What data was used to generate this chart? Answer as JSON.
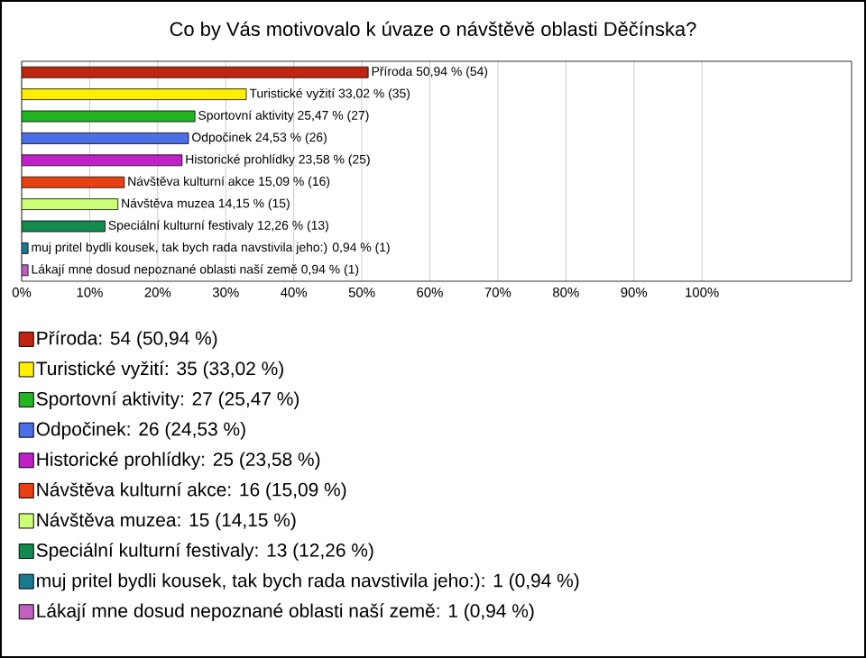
{
  "chart_data": {
    "type": "bar",
    "orientation": "horizontal",
    "title": "Co by Vás motivovalo k úvaze o návštěvě oblasti Děčínska?",
    "categories": [
      null,
      null,
      null,
      null,
      null,
      null,
      null,
      null,
      null,
      null
    ],
    "series": [
      {
        "name": "Příroda: 54 (50,94 %)",
        "color": "#c0260f",
        "values": [
          50.94,
          null,
          null,
          null,
          null,
          null,
          null,
          null,
          null,
          null
        ],
        "value_labels": [
          "Příroda 50,94 % (54)",
          null,
          null,
          null,
          null,
          null,
          null,
          null,
          null,
          null
        ]
      },
      {
        "name": "Turistické vyžití: 35 (33,02 %)",
        "color": "#ffee00",
        "values": [
          null,
          33.02,
          null,
          null,
          null,
          null,
          null,
          null,
          null,
          null
        ],
        "value_labels": [
          null,
          "Turistické vyžití 33,02 % (35)",
          null,
          null,
          null,
          null,
          null,
          null,
          null,
          null
        ]
      },
      {
        "name": "Sportovní aktivity: 27 (25,47 %)",
        "color": "#22b422",
        "values": [
          null,
          null,
          25.47,
          null,
          null,
          null,
          null,
          null,
          null,
          null
        ],
        "value_labels": [
          null,
          null,
          "Sportovní aktivity 25,47 % (27)",
          null,
          null,
          null,
          null,
          null,
          null,
          null
        ]
      },
      {
        "name": "Odpočinek: 26 (24,53 %)",
        "color": "#4a6fe8",
        "values": [
          null,
          null,
          null,
          24.53,
          null,
          null,
          null,
          null,
          null,
          null
        ],
        "value_labels": [
          null,
          null,
          null,
          "Odpočinek 24,53 % (26)",
          null,
          null,
          null,
          null,
          null,
          null
        ]
      },
      {
        "name": "Historické prohlídky: 25 (23,58 %)",
        "color": "#c020c8",
        "values": [
          null,
          null,
          null,
          null,
          23.58,
          null,
          null,
          null,
          null,
          null
        ],
        "value_labels": [
          null,
          null,
          null,
          null,
          "Historické prohlídky 23,58 % (25)",
          null,
          null,
          null,
          null,
          null
        ]
      },
      {
        "name": "Návštěva kulturní akce: 16 (15,09 %)",
        "color": "#e84010",
        "values": [
          null,
          null,
          null,
          null,
          null,
          15.09,
          null,
          null,
          null,
          null
        ],
        "value_labels": [
          null,
          null,
          null,
          null,
          null,
          "Návštěva kulturní akce 15,09 % (16)",
          null,
          null,
          null,
          null
        ]
      },
      {
        "name": "Návštěva muzea: 15 (14,15 %)",
        "color": "#ccff77",
        "values": [
          null,
          null,
          null,
          null,
          null,
          null,
          14.15,
          null,
          null,
          null
        ],
        "value_labels": [
          null,
          null,
          null,
          null,
          null,
          null,
          "Návštěva muzea 14,15 % (15)",
          null,
          null,
          null
        ]
      },
      {
        "name": "Speciální kulturní festivaly: 13 (12,26 %)",
        "color": "#128a50",
        "values": [
          null,
          null,
          null,
          null,
          null,
          null,
          null,
          12.26,
          null,
          null
        ],
        "value_labels": [
          null,
          null,
          null,
          null,
          null,
          null,
          null,
          "Speciální kulturní festivaly 12,26 % (13)",
          null,
          null
        ]
      },
      {
        "name": "muj pritel bydli kousek, tak bych rada navstivila jeho:): 1 (0,94 %)",
        "color": "#1a7a90",
        "values": [
          null,
          null,
          null,
          null,
          null,
          null,
          null,
          null,
          0.94,
          null
        ],
        "value_labels": [
          null,
          null,
          null,
          null,
          null,
          null,
          null,
          null,
          "muj pritel bydli kousek, tak bych rada navstivila jeho:) 0,94 % (1)",
          null
        ]
      },
      {
        "name": "Lákají mne dosud nepoznané oblasti naší země: 1 (0,94 %)",
        "color": "#c060c0",
        "values": [
          null,
          null,
          null,
          null,
          null,
          null,
          null,
          null,
          null,
          0.94
        ],
        "value_labels": [
          null,
          null,
          null,
          null,
          null,
          null,
          null,
          null,
          null,
          "Lákají mne dosud nepoznané oblasti naší země 0,94 % (1)"
        ]
      }
    ],
    "xlim": [
      0,
      122
    ],
    "xticks": [
      {
        "value": 0,
        "label": "0%"
      },
      {
        "value": 10,
        "label": "10%"
      },
      {
        "value": 20,
        "label": "20%"
      },
      {
        "value": 30,
        "label": "30%"
      },
      {
        "value": 40,
        "label": "40%"
      },
      {
        "value": 50,
        "label": "50%"
      },
      {
        "value": 60,
        "label": "60%"
      },
      {
        "value": 70,
        "label": "70%"
      },
      {
        "value": 80,
        "label": "80%"
      },
      {
        "value": 90,
        "label": "90%"
      },
      {
        "value": 100,
        "label": "100%"
      }
    ],
    "grid": "x",
    "tick_labels": "x",
    "legend": "bottom"
  }
}
